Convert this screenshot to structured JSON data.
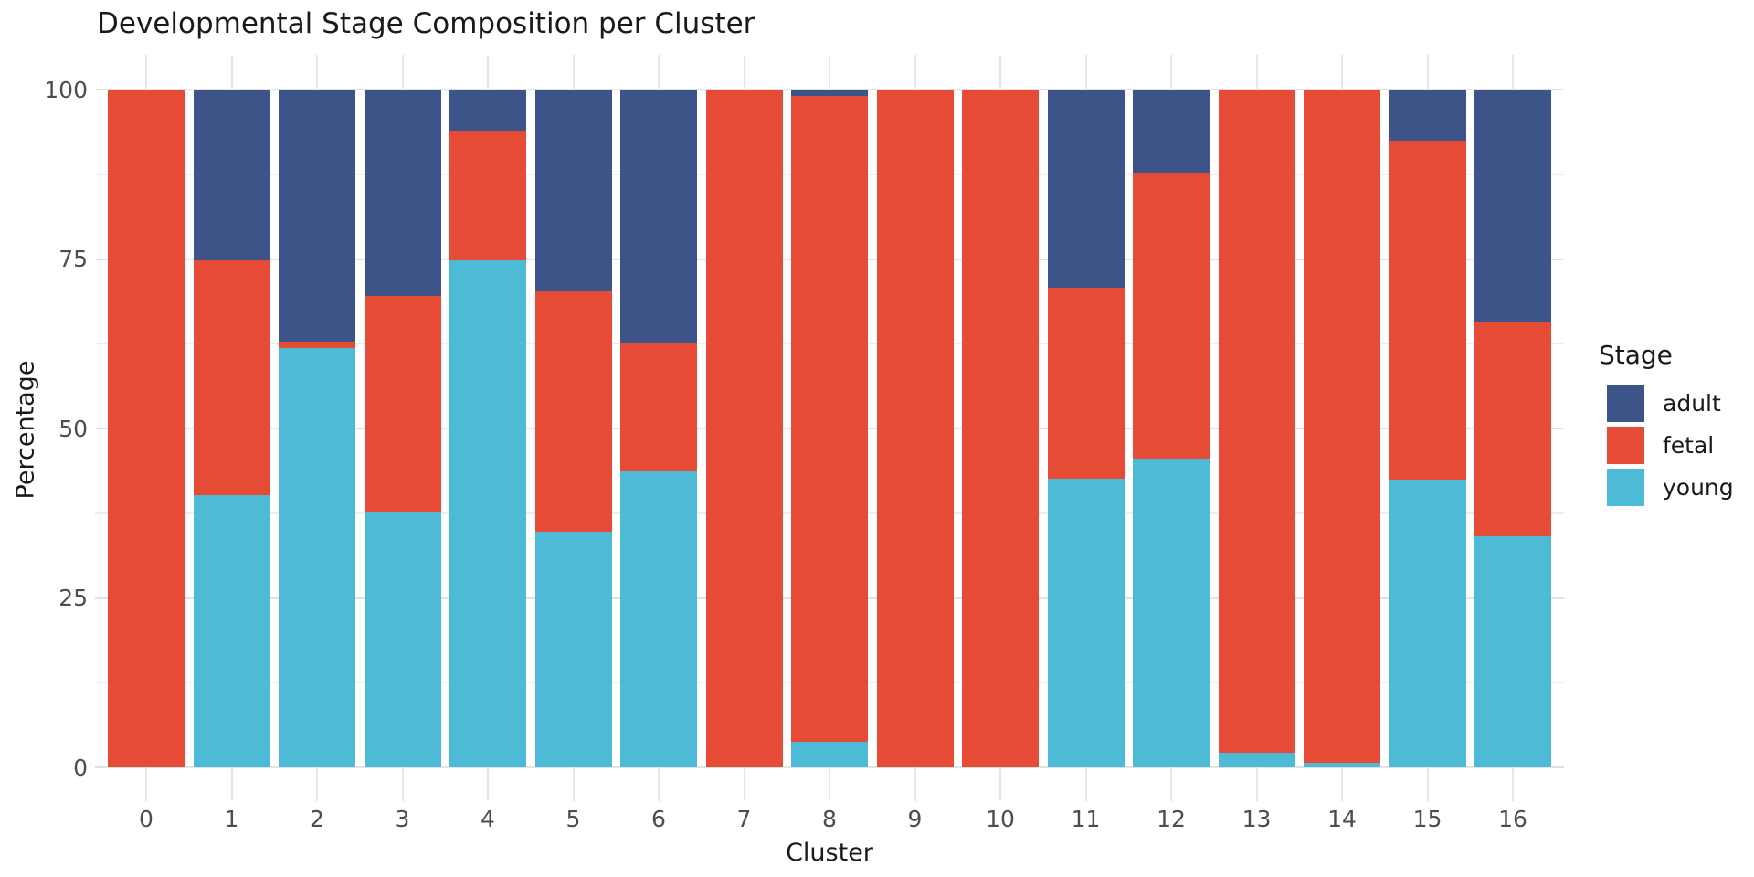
{
  "page_title": "Developmental Stage Composition per Cluster",
  "chart_data": {
    "type": "bar",
    "stacked": true,
    "normalized": "percent",
    "title": "Developmental Stage Composition per Cluster",
    "xlabel": "Cluster",
    "ylabel": "Percentage",
    "categories": [
      "0",
      "1",
      "2",
      "3",
      "4",
      "5",
      "6",
      "7",
      "8",
      "9",
      "10",
      "11",
      "12",
      "13",
      "14",
      "15",
      "16"
    ],
    "series": [
      {
        "name": "young",
        "color": "#4DBBD5",
        "values": [
          0,
          40.2,
          61.9,
          37.8,
          74.8,
          34.8,
          43.6,
          0,
          3.8,
          0,
          0,
          42.6,
          45.6,
          2.2,
          0.7,
          42.5,
          34.1
        ]
      },
      {
        "name": "fetal",
        "color": "#E64B35",
        "values": [
          100,
          34.6,
          0.9,
          31.7,
          19.1,
          35.4,
          18.9,
          100,
          95.2,
          100,
          100,
          28.1,
          42.1,
          97.8,
          99.3,
          49.9,
          31.6
        ]
      },
      {
        "name": "adult",
        "color": "#3C5488",
        "values": [
          0,
          25.2,
          37.2,
          30.5,
          6.1,
          29.8,
          37.5,
          0,
          1.0,
          0,
          0,
          29.3,
          12.3,
          0,
          0,
          7.6,
          34.3
        ]
      }
    ],
    "stack_order_bottom_to_top": [
      "young",
      "fetal",
      "adult"
    ],
    "ylim": [
      0,
      100
    ],
    "yticks": [
      0,
      25,
      50,
      75,
      100
    ],
    "minor_yticks": [
      12.5,
      37.5,
      62.5,
      87.5
    ],
    "grid": {
      "horizontal": "major+minor",
      "vertical": "major only",
      "color": "light-gray",
      "background": "white"
    },
    "legend": {
      "title": "Stage",
      "position": "right-center",
      "items": [
        "adult",
        "fetal",
        "young"
      ]
    }
  },
  "colors": {
    "background": "#FFFFFF",
    "grid_major": "#E2E2E2",
    "grid_minor": "#EDEDED",
    "grid_vertical": "#E7E7E7",
    "tick_label": "#4D4D4D",
    "text": "#1A1A1A",
    "young": "#4DBBD5",
    "fetal": "#E64B35",
    "adult": "#3C5488"
  }
}
